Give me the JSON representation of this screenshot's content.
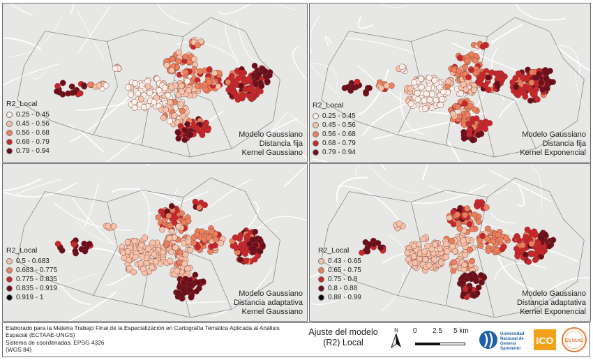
{
  "panels": [
    {
      "id": "top-left",
      "legend": {
        "title": "R2_Local",
        "classes": [
          {
            "label": "0.25 - 0.45",
            "color": "#fdf1ea"
          },
          {
            "label": "0.45 - 0.56",
            "color": "#f6c3aa"
          },
          {
            "label": "0.56 - 0.68",
            "color": "#ec7f5c"
          },
          {
            "label": "0.68 - 0.79",
            "color": "#c9252b"
          },
          {
            "label": "0.79 - 0.94",
            "color": "#6b0d1a"
          }
        ]
      },
      "caption": {
        "line1": "Modelo Gaussiano",
        "line2": "Distancia fija",
        "line3": "Kernel Gaussiano"
      }
    },
    {
      "id": "top-right",
      "legend": {
        "title": "R2_Local",
        "classes": [
          {
            "label": "0.25 - 0.45",
            "color": "#fdf1ea"
          },
          {
            "label": "0.45 - 0.56",
            "color": "#f6c3aa"
          },
          {
            "label": "0.56 - 0.68",
            "color": "#ec7f5c"
          },
          {
            "label": "0.68 - 0.79",
            "color": "#c9252b"
          },
          {
            "label": "0.79 - 0.94",
            "color": "#6b0d1a"
          }
        ]
      },
      "caption": {
        "line1": "Modelo Gaussiano",
        "line2": "Distancia fija",
        "line3": "Kernel Exponencial"
      }
    },
    {
      "id": "bottom-left",
      "legend": {
        "title": "R2_Local",
        "classes": [
          {
            "label": "0.5 - 0.683",
            "color": "#f6c3aa"
          },
          {
            "label": "0.683 - 0.775",
            "color": "#ec7f5c"
          },
          {
            "label": "0.775 - 0.835",
            "color": "#c9252b"
          },
          {
            "label": "0.835 - 0.919",
            "color": "#6b0d1a"
          },
          {
            "label": "0.919 - 1",
            "color": "#0a0a0a"
          }
        ]
      },
      "caption": {
        "line1": "Modelo Gaussiano",
        "line2": "Distancia adaptativa",
        "line3": "Kernel Gaussiano"
      }
    },
    {
      "id": "bottom-right",
      "legend": {
        "title": "R2_Local",
        "classes": [
          {
            "label": "0.43 - 0.65",
            "color": "#f6c3aa"
          },
          {
            "label": "0.65 - 0.75",
            "color": "#ec7f5c"
          },
          {
            "label": "0.75 - 0.8",
            "color": "#c9252b"
          },
          {
            "label": "0.8 - 0.88",
            "color": "#6b0d1a"
          },
          {
            "label": "0.88 - 0.99",
            "color": "#0a0a0a"
          }
        ]
      },
      "caption": {
        "line1": "Modelo Gaussiano",
        "line2": "Distancia adaptativa",
        "line3": "Kernel Exponencial"
      }
    }
  ],
  "footer": {
    "credits_line1": "Elaborado para la Materia Trabajo Final de la Especialización en Cartografía Temática Aplicada al Análisis",
    "credits_line2": "Espacial (ECTAAE-UNGS)",
    "credits_line3": "Sistema de coordenadas: EPSG 4326",
    "credits_line4": "(WGS 84)",
    "title_line1": "Ajuste del modelo",
    "title_line2": "(R2) Local",
    "north_label": "N",
    "scale_labels": [
      "0",
      "2.5",
      "5 km"
    ],
    "logos": {
      "ungs_text": [
        "Universidad",
        "Nacional de",
        "General",
        "Sarmiento"
      ],
      "ico_text": "ICO",
      "ectaae_text": "ECTAAE"
    }
  },
  "colors": {
    "panel_background": "#e7e8e5",
    "road_color": "#ffffff",
    "boundary_color": "#8a8a8a",
    "frame_color": "#6d6d6d",
    "ungs_blue": "#1f5fa8",
    "ico_orange": "#f2a21a",
    "ectaae_orange": "#e8752a"
  }
}
